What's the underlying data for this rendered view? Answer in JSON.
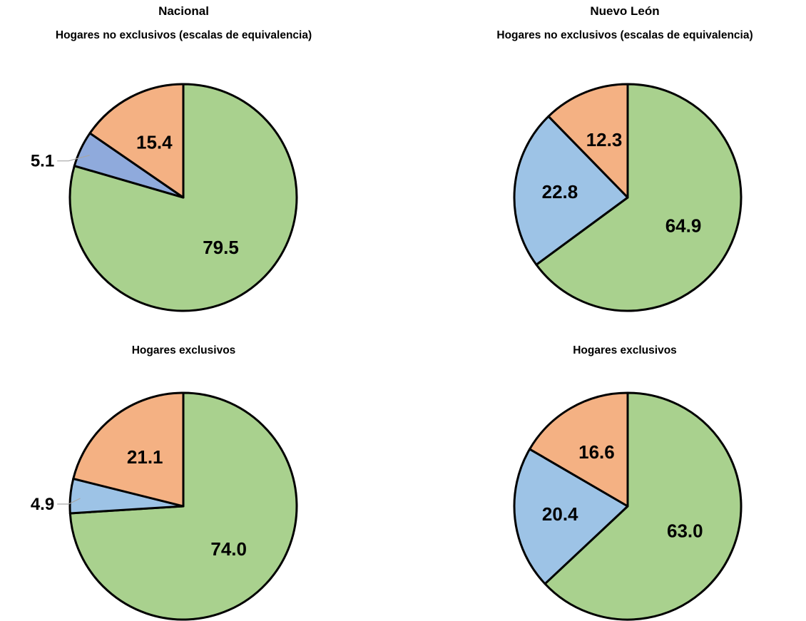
{
  "colors": {
    "green": "#a9d18e",
    "orange": "#f4b183",
    "blue_dark": "#8faadc",
    "blue": "#9dc3e6",
    "stroke": "#000000",
    "leader": "#a6a6a6"
  },
  "chart_data": [
    {
      "type": "pie",
      "title": "Nacional",
      "subtitle": "Hogares no exclusivos (escalas de equivalencia)",
      "slices": [
        {
          "value": 79.5,
          "label": "79.5",
          "color": "#a9d18e"
        },
        {
          "value": 5.1,
          "label": "5.1",
          "color": "#8faadc"
        },
        {
          "value": 15.4,
          "label": "15.4",
          "color": "#f4b183"
        }
      ]
    },
    {
      "type": "pie",
      "title": "Nuevo León",
      "subtitle": "Hogares no exclusivos (escalas de equivalencia)",
      "slices": [
        {
          "value": 64.9,
          "label": "64.9",
          "color": "#a9d18e"
        },
        {
          "value": 22.8,
          "label": "22.8",
          "color": "#9dc3e6"
        },
        {
          "value": 12.3,
          "label": "12.3",
          "color": "#f4b183"
        }
      ]
    },
    {
      "type": "pie",
      "title": "",
      "subtitle": "Hogares exclusivos",
      "slices": [
        {
          "value": 74.0,
          "label": "74.0",
          "color": "#a9d18e"
        },
        {
          "value": 4.9,
          "label": "4.9",
          "color": "#9dc3e6"
        },
        {
          "value": 21.1,
          "label": "21.1",
          "color": "#f4b183"
        }
      ]
    },
    {
      "type": "pie",
      "title": "",
      "subtitle": "Hogares exclusivos",
      "slices": [
        {
          "value": 63.0,
          "label": "63.0",
          "color": "#a9d18e"
        },
        {
          "value": 20.4,
          "label": "20.4",
          "color": "#9dc3e6"
        },
        {
          "value": 16.6,
          "label": "16.6",
          "color": "#f4b183"
        }
      ]
    }
  ]
}
